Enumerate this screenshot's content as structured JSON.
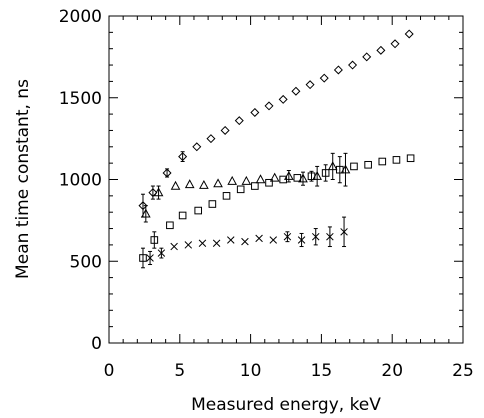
{
  "chart_data": {
    "type": "scatter",
    "title": "",
    "xlabel": "Measured energy, keV",
    "ylabel": "Mean time constant, ns",
    "xlim": [
      0,
      25
    ],
    "ylim": [
      0,
      2000
    ],
    "xticks": [
      0,
      5,
      10,
      15,
      20,
      25
    ],
    "yticks": [
      0,
      500,
      1000,
      1500,
      2000
    ],
    "xminor_step": 1,
    "yminor_step": 100,
    "grid": false,
    "legend": "none",
    "color": "#000000",
    "series": [
      {
        "marker": "diamond",
        "x": [
          2.4,
          3.1,
          4.1,
          5.2,
          6.2,
          7.2,
          8.2,
          9.2,
          10.3,
          11.3,
          12.3,
          13.2,
          14.2,
          15.2,
          16.2,
          17.2,
          18.2,
          19.2,
          20.2,
          21.2
        ],
        "y": [
          840,
          920,
          1040,
          1140,
          1200,
          1250,
          1300,
          1360,
          1410,
          1450,
          1490,
          1540,
          1580,
          1620,
          1670,
          1700,
          1750,
          1790,
          1830,
          1890
        ],
        "yerr": [
          70,
          40,
          25,
          30,
          15,
          15,
          15,
          15,
          15,
          15,
          15,
          15,
          15,
          15,
          15,
          15,
          15,
          15,
          15,
          15
        ]
      },
      {
        "marker": "triangle",
        "x": [
          2.6,
          3.5,
          4.7,
          5.7,
          6.7,
          7.7,
          8.7,
          9.7,
          10.7,
          11.7,
          12.7,
          13.7,
          14.7,
          15.8,
          16.7
        ],
        "y": [
          790,
          920,
          960,
          970,
          965,
          975,
          990,
          990,
          1000,
          1010,
          1020,
          1005,
          1020,
          1080,
          1060
        ],
        "yerr": [
          50,
          40,
          15,
          15,
          15,
          15,
          15,
          15,
          15,
          20,
          35,
          40,
          60,
          80,
          100
        ]
      },
      {
        "marker": "square",
        "x": [
          2.4,
          3.2,
          4.3,
          5.2,
          6.3,
          7.3,
          8.3,
          9.3,
          10.3,
          11.3,
          12.3,
          13.3,
          14.3,
          15.3,
          16.3,
          17.3,
          18.3,
          19.3,
          20.3,
          21.3
        ],
        "y": [
          520,
          630,
          720,
          780,
          810,
          850,
          900,
          940,
          960,
          980,
          1000,
          1010,
          1020,
          1040,
          1060,
          1080,
          1090,
          1110,
          1120,
          1130
        ],
        "yerr": [
          60,
          50,
          15,
          15,
          15,
          15,
          15,
          15,
          15,
          15,
          15,
          20,
          30,
          50,
          80,
          20,
          15,
          15,
          15,
          15
        ]
      },
      {
        "marker": "cross",
        "x": [
          2.9,
          3.7,
          4.6,
          5.6,
          6.6,
          7.6,
          8.6,
          9.6,
          10.6,
          11.6,
          12.6,
          13.6,
          14.6,
          15.6,
          16.6
        ],
        "y": [
          520,
          550,
          590,
          600,
          610,
          610,
          630,
          620,
          640,
          630,
          650,
          630,
          650,
          650,
          680
        ],
        "yerr": [
          40,
          30,
          15,
          15,
          15,
          15,
          15,
          15,
          15,
          15,
          30,
          40,
          50,
          60,
          90
        ]
      }
    ]
  }
}
